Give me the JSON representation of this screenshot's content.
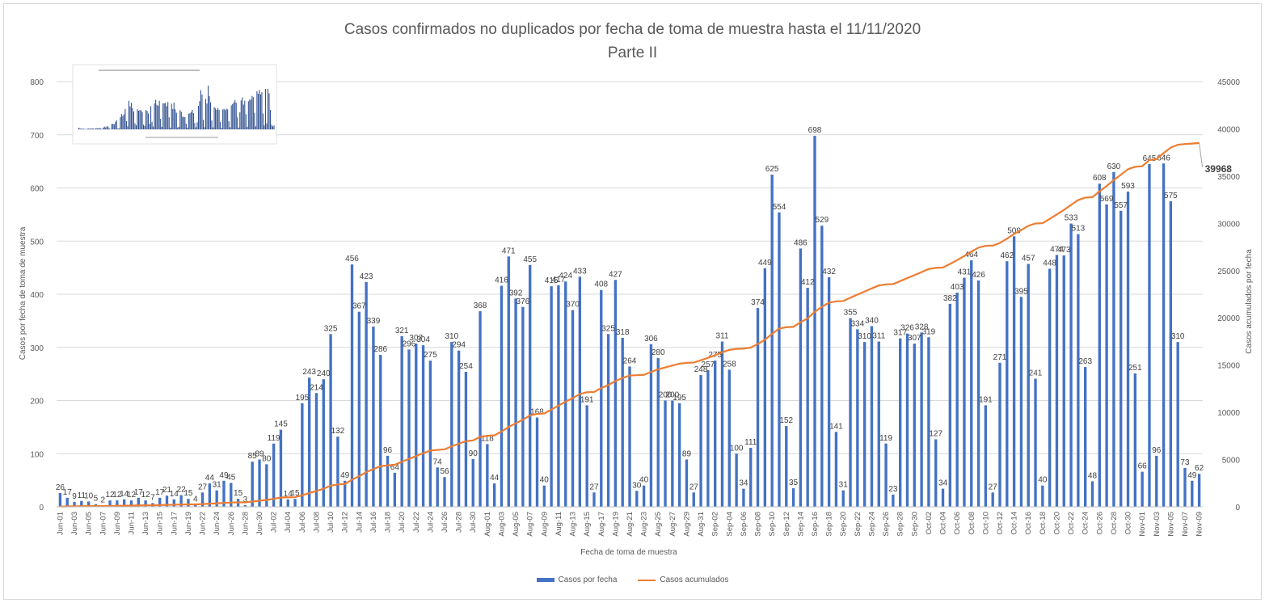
{
  "chart_data": {
    "type": "bar+line",
    "title": "Casos confirmados no duplicados por fecha de toma de muestra hasta el 11/11/2020",
    "subtitle": "Parte II",
    "xlabel": "Fecha de toma de muestra",
    "ylabel": "Casos por fecha de toma de muestra",
    "ylabel_right": "Casos acumulados por fecha",
    "ylim": [
      0,
      800
    ],
    "y2lim": [
      0,
      45000
    ],
    "yticks": [
      "0",
      "100",
      "200",
      "300",
      "400",
      "500",
      "600",
      "700",
      "800"
    ],
    "y2ticks": [
      "0",
      "5000",
      "10000",
      "15000",
      "20000",
      "25000",
      "30000",
      "35000",
      "40000",
      "45000"
    ],
    "xtick_labels": [
      "Jun-01",
      "Jun-03",
      "Jun-05",
      "Jun-07",
      "Jun-09",
      "Jun-11",
      "Jun-13",
      "Jun-15",
      "Jun-17",
      "Jun-19",
      "Jun-22",
      "Jun-24",
      "Jun-26",
      "Jun-28",
      "Jun-30",
      "Jul-02",
      "Jul-04",
      "Jul-06",
      "Jul-08",
      "Jul-10",
      "Jul-12",
      "Jul-14",
      "Jul-16",
      "Jul-18",
      "Jul-20",
      "Jul-22",
      "Jul-24",
      "Jul-26",
      "Jul-28",
      "Jul-30",
      "Aug-01",
      "Aug-03",
      "Aug-05",
      "Aug-07",
      "Aug-09",
      "Aug-11",
      "Aug-13",
      "Aug-15",
      "Aug-17",
      "Aug-19",
      "Aug-21",
      "Aug-23",
      "Aug-25",
      "Aug-27",
      "Aug-29",
      "Aug-31",
      "Sep-02",
      "Sep-04",
      "Sep-06",
      "Sep-08",
      "Sep-10",
      "Sep-12",
      "Sep-14",
      "Sep-16",
      "Sep-18",
      "Sep-20",
      "Sep-22",
      "Sep-24",
      "Sep-26",
      "Sep-28",
      "Sep-30",
      "Oct-02",
      "Oct-04",
      "Oct-06",
      "Oct-08",
      "Oct-10",
      "Oct-12",
      "Oct-14",
      "Oct-16",
      "Oct-18",
      "Oct-20",
      "Oct-22",
      "Oct-24",
      "Oct-26",
      "Oct-28",
      "Oct-30",
      "Nov-01",
      "Nov-03",
      "Nov-05",
      "Nov-07",
      "Nov-09"
    ],
    "series": [
      {
        "name": "Casos por fecha",
        "type": "bar",
        "color": "#4472c4",
        "values": [
          26,
          17,
          9,
          11,
          10,
          5,
          2,
          12,
          12,
          14,
          12,
          17,
          12,
          7,
          17,
          21,
          14,
          22,
          15,
          4,
          27,
          44,
          31,
          49,
          45,
          15,
          3,
          85,
          89,
          80,
          119,
          145,
          14,
          15,
          195,
          243,
          214,
          240,
          325,
          132,
          49,
          456,
          367,
          423,
          339,
          286,
          96,
          64,
          321,
          296,
          307,
          304,
          275,
          74,
          56,
          310,
          294,
          254,
          90,
          368,
          118,
          44,
          416,
          471,
          392,
          376,
          455,
          168,
          40,
          415,
          417,
          424,
          370,
          433,
          191,
          27,
          408,
          325,
          427,
          318,
          264,
          30,
          40,
          306,
          280,
          200,
          200,
          195,
          89,
          27,
          248,
          257,
          275,
          311,
          258,
          100,
          34,
          111,
          374,
          449,
          625,
          554,
          152,
          35,
          486,
          412,
          698,
          529,
          432,
          141,
          31,
          355,
          334,
          310,
          340,
          311,
          119,
          23,
          317,
          326,
          307,
          328,
          319,
          127,
          34,
          382,
          403,
          431,
          464,
          426,
          191,
          27,
          271,
          462,
          509,
          395,
          457,
          241,
          40,
          448,
          474,
          473,
          533,
          513,
          263,
          48,
          608,
          569,
          630,
          557,
          593,
          251,
          66,
          645,
          96,
          646,
          575,
          310,
          73,
          49,
          62
        ]
      },
      {
        "name": "Casos acumulados",
        "type": "line",
        "color": "#ed7d31"
      }
    ],
    "annotations": [
      "39968"
    ]
  },
  "legend": {
    "bar_label": "Casos por fecha",
    "line_label": "Casos acumulados"
  }
}
